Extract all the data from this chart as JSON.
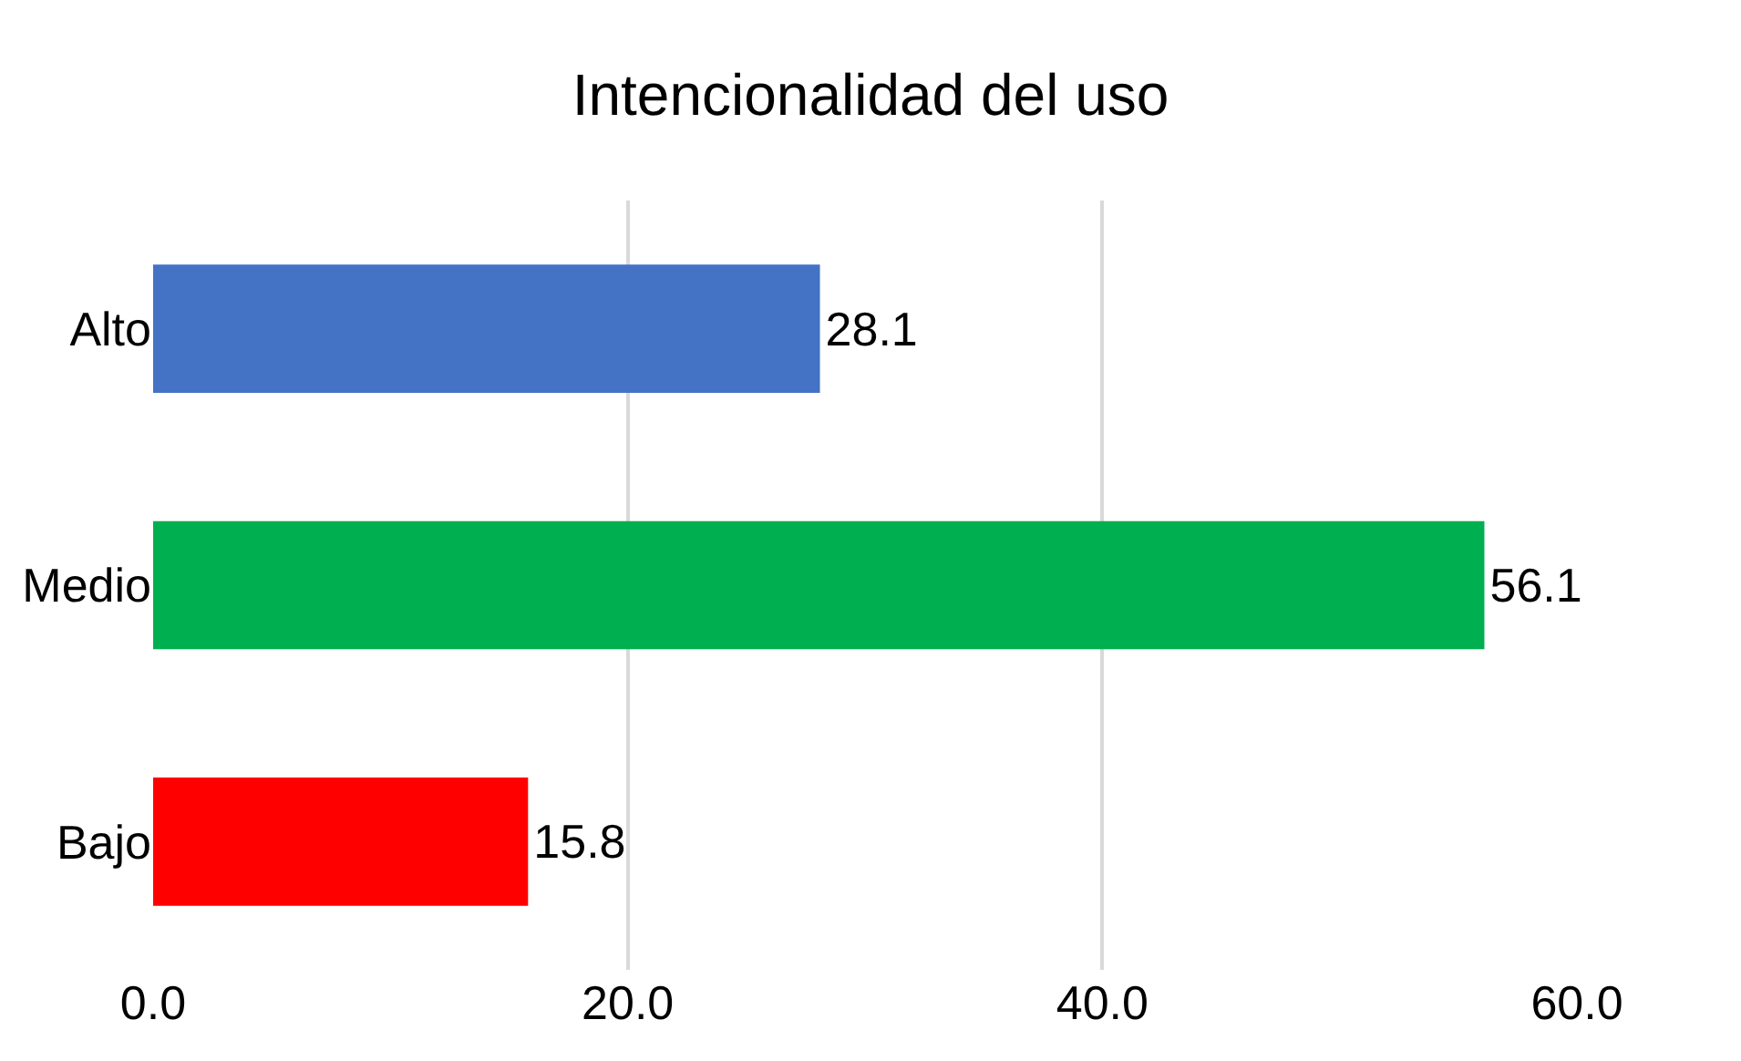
{
  "chart_data": {
    "type": "bar",
    "orientation": "horizontal",
    "title": "Intencionalidad del uso",
    "categories": [
      "Alto",
      "Medio",
      "Bajo"
    ],
    "values": [
      28.1,
      56.1,
      15.8
    ],
    "colors": [
      "#4472c4",
      "#00b050",
      "#ff0000"
    ],
    "xlim": [
      0,
      60
    ],
    "xticks": [
      {
        "value": 0,
        "label": "0.0"
      },
      {
        "value": 20,
        "label": "20.0"
      },
      {
        "value": 40,
        "label": "40.0"
      },
      {
        "value": 60,
        "label": "60.0"
      }
    ],
    "grid": "x",
    "data_labels": true
  }
}
